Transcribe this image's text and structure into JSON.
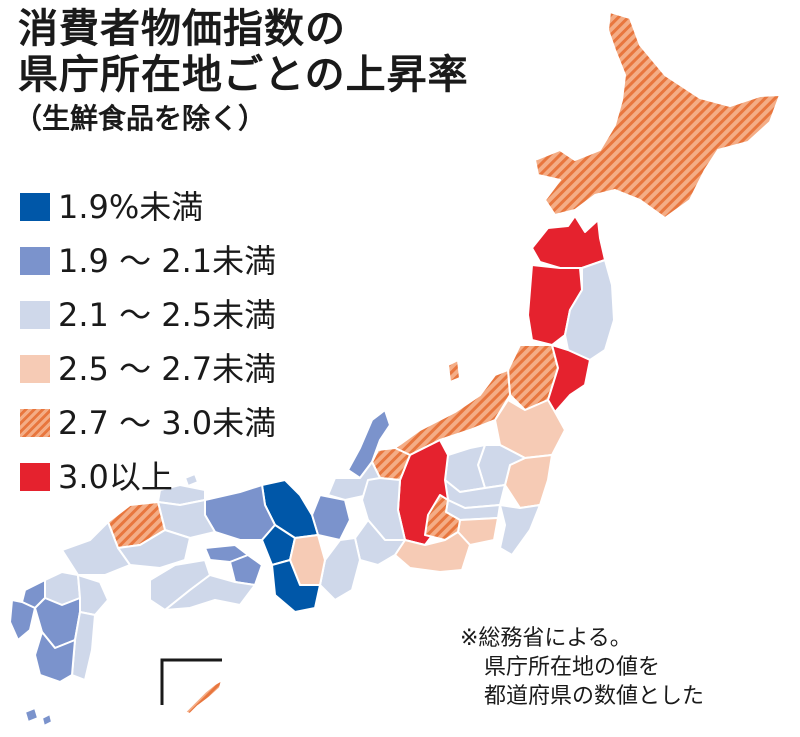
{
  "title_lines": [
    "消費者物価指数の",
    "県庁所在地ごとの上昇率"
  ],
  "subtitle": "（生鮮食品を除く）",
  "colors": {
    "lt_1_9": "#0057a8",
    "r_1_9_2_1": "#7b93cc",
    "r_2_1_2_5": "#cfd8ea",
    "r_2_5_2_7": "#f6cbb5",
    "r_2_7_3_0_base": "#f4ad86",
    "r_2_7_3_0_stripe": "#e8763e",
    "ge_3_0": "#e5222e",
    "border": "#ffffff"
  },
  "legend": [
    {
      "label": "1.9%未満",
      "class": "lt_1_9"
    },
    {
      "label": "1.9 ～ 2.1未満",
      "class": "r_1_9_2_1"
    },
    {
      "label": "2.1 ～ 2.5未満",
      "class": "r_2_1_2_5"
    },
    {
      "label": "2.5 ～ 2.7未満",
      "class": "r_2_5_2_7"
    },
    {
      "label": "2.7 ～ 3.0未満",
      "class": "r_2_7_3_0"
    },
    {
      "label": "3.0以上",
      "class": "ge_3_0"
    }
  ],
  "note_lines": [
    "※総務省による。",
    "県庁所在地の値を",
    "都道府県の数値とした"
  ]
}
